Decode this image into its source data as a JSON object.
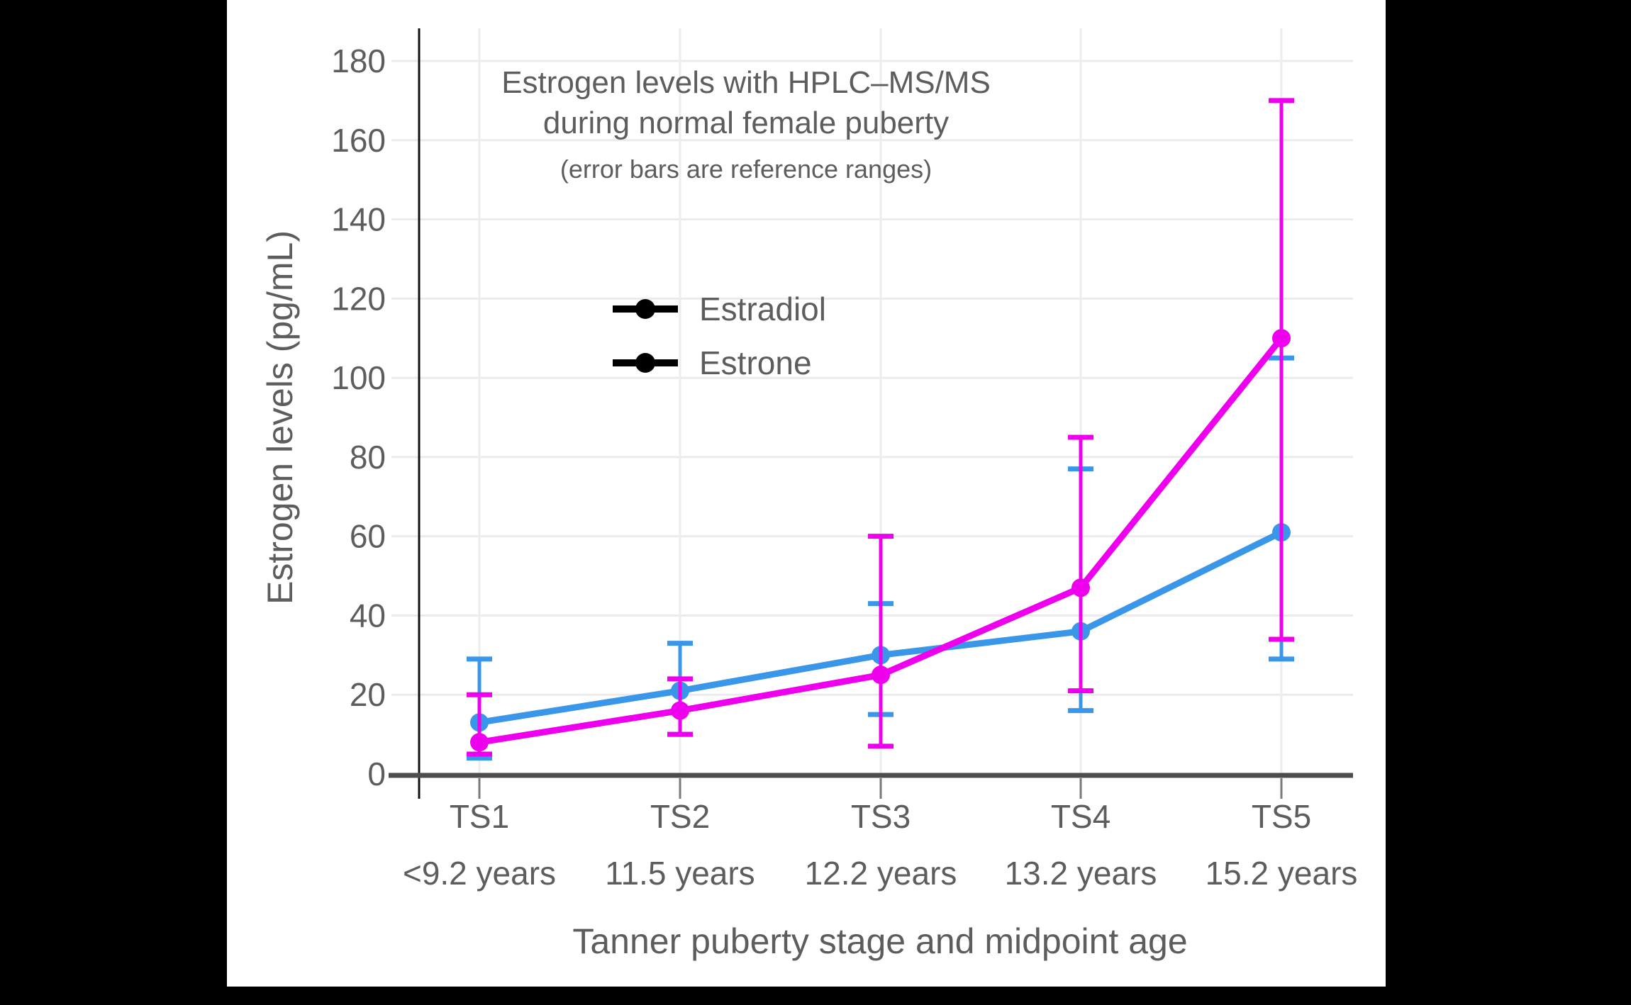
{
  "figure": {
    "background": "#000000",
    "panel_background": "#ffffff"
  },
  "colors": {
    "text": "#5d5d5d",
    "grid_h": "#ebebeb",
    "grid_v": "#ededed",
    "x_axis_line": "#4d4d4d",
    "y_axis_line": "#111111",
    "x_tick": "#7a7a7a"
  },
  "chart_data": {
    "type": "line",
    "title": "Estrogen levels with HPLC–MS/MS",
    "title_line2": "during normal female puberty",
    "subtitle": "(error bars are reference ranges)",
    "xlabel": "Tanner puberty stage and midpoint age",
    "ylabel": "Estrogen levels (pg/mL)",
    "categories": [
      "TS1",
      "TS2",
      "TS3",
      "TS4",
      "TS5"
    ],
    "category_sublabels": [
      "<9.2 years",
      "11.5 years",
      "12.2 years",
      "13.2 years",
      "15.2 years"
    ],
    "ylim": [
      0,
      180
    ],
    "yticks": [
      0,
      20,
      40,
      60,
      80,
      100,
      120,
      140,
      160,
      180
    ],
    "grid": true,
    "legend_position": "inside-top-center",
    "error_bars": "reference ranges",
    "series": [
      {
        "name": "Estradiol",
        "color": "#EE00EE",
        "values": [
          8,
          16,
          25,
          47,
          110
        ],
        "error_low": [
          5,
          10,
          7,
          21,
          34
        ],
        "error_high": [
          20,
          24,
          60,
          85,
          170
        ]
      },
      {
        "name": "Estrone",
        "color": "#3A96E8",
        "values": [
          13,
          21,
          30,
          36,
          61
        ],
        "error_low": [
          4,
          10,
          15,
          16,
          29
        ],
        "error_high": [
          29,
          33,
          43,
          77,
          105
        ]
      }
    ]
  }
}
